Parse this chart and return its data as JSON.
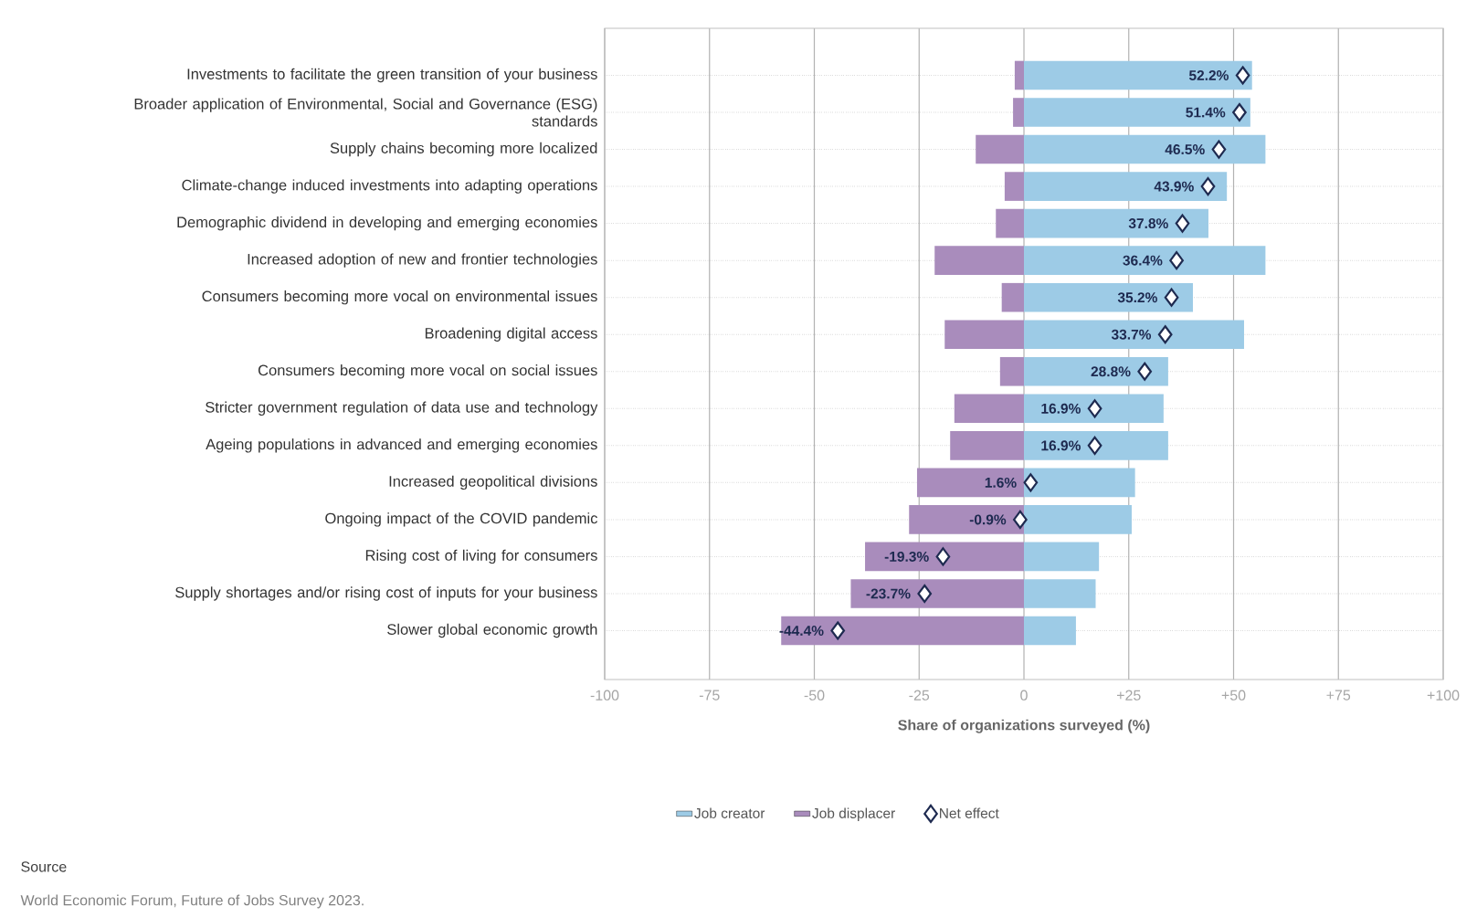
{
  "chart_data": {
    "type": "bar",
    "orientation": "horizontal",
    "stacked": true,
    "categories": [
      "Investments to facilitate the green transition of your business",
      "Broader application of Environmental, Social and Governance (ESG) standards",
      "Supply chains becoming more localized",
      "Climate-change induced investments into adapting operations",
      "Demographic dividend in developing and emerging economies",
      "Increased adoption of new and frontier technologies",
      "Consumers becoming more vocal on environmental issues",
      "Broadening digital access",
      "Consumers becoming more vocal on social issues",
      "Stricter government regulation of data use and technology",
      "Ageing populations in advanced and emerging economies",
      "Increased geopolitical divisions",
      "Ongoing impact of the COVID pandemic",
      "Rising cost of living for consumers",
      "Supply shortages and/or rising cost of inputs for your business",
      "Slower global economic growth"
    ],
    "series": [
      {
        "name": "Job creator",
        "color": "#9dcbe6",
        "values": [
          54.4,
          54.0,
          57.6,
          48.4,
          44.0,
          57.6,
          40.3,
          52.5,
          34.4,
          33.3,
          34.4,
          26.5,
          25.7,
          17.9,
          17.1,
          12.4
        ]
      },
      {
        "name": "Job displacer",
        "color": "#a98cbc",
        "values": [
          -2.2,
          -2.6,
          -11.5,
          -4.6,
          -6.7,
          -21.3,
          -5.3,
          -18.9,
          -5.7,
          -16.6,
          -17.6,
          -25.5,
          -27.4,
          -37.9,
          -41.3,
          -57.9
        ]
      },
      {
        "name": "Net effect",
        "type": "scatter",
        "marker": "diamond",
        "color": "#1e2a50",
        "values": [
          52.2,
          51.4,
          46.5,
          43.9,
          37.8,
          36.4,
          35.2,
          33.7,
          28.8,
          16.9,
          16.9,
          1.6,
          -0.9,
          -19.3,
          -23.7,
          -44.4
        ],
        "value_labels": [
          "52.2%",
          "51.4%",
          "46.5%",
          "43.9%",
          "37.8%",
          "36.4%",
          "35.2%",
          "33.7%",
          "28.8%",
          "16.9%",
          "16.9%",
          "1.6%",
          "-0.9%",
          "-19.3%",
          "-23.7%",
          "-44.4%"
        ]
      }
    ],
    "xlabel": "Share of organizations surveyed (%)",
    "xlim": [
      -100,
      100
    ],
    "xticks": [
      -100,
      -75,
      -50,
      -25,
      0,
      {
        "value": 25,
        "label": "+25"
      },
      {
        "value": 50,
        "label": "+50"
      },
      {
        "value": 75,
        "label": "+75"
      },
      {
        "value": 100,
        "label": "+100"
      }
    ],
    "grid": true,
    "legend": "bottom",
    "annotations": [
      "Source",
      "World Economic Forum, Future of Jobs Survey 2023."
    ]
  }
}
